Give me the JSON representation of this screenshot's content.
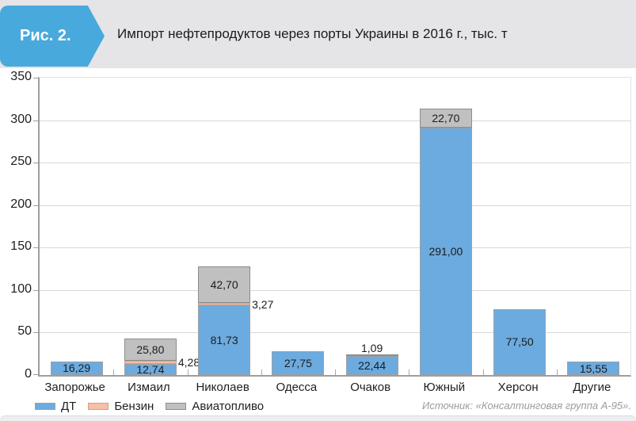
{
  "header": {
    "figure_label": "Рис. 2.",
    "title": "Импорт нефтепродуктов через порты Украины в 2016 г., тыс. т"
  },
  "source": "Источник: «Консалтинговая группа А-95».",
  "colors": {
    "badge_blue": "#48a9dc",
    "header_bg": "#e5e5e7",
    "bar_blue": "#6cabdf",
    "bar_pink": "#f6bfa6",
    "bar_gray": "#c0c0c0",
    "gridline": "#d8d8d8",
    "axis": "#9e9e9e",
    "text": "#1c1c1c",
    "source_text": "#9b9ba2"
  },
  "chart_data": {
    "type": "bar",
    "stacked": true,
    "title": "Импорт нефтепродуктов через порты Украины в 2016 г., тыс. т",
    "ylabel": "тыс. т",
    "xlabel": "",
    "ylim": [
      0,
      350
    ],
    "yticks": [
      0,
      50,
      100,
      150,
      200,
      250,
      300,
      350
    ],
    "grid": true,
    "legend_position": "bottom-left",
    "categories": [
      "Запорожье",
      "Измаил",
      "Николаев",
      "Одесса",
      "Очаков",
      "Южный",
      "Херсон",
      "Другие"
    ],
    "series": [
      {
        "name": "ДТ",
        "color": "#6cabdf",
        "border": "#a0a0a0",
        "values": [
          16.29,
          12.74,
          81.73,
          27.75,
          22.44,
          291.0,
          77.5,
          15.55
        ],
        "labels": [
          "16,29",
          "12,74",
          "81,73",
          "27,75",
          "22,44",
          "291,00",
          "77,50",
          "15,55"
        ],
        "label_placement": [
          "inside",
          "inside",
          "inside",
          "inside",
          "inside",
          "inside",
          "inside",
          "inside"
        ]
      },
      {
        "name": "Бензин",
        "color": "#f6bfa6",
        "border": "#c9a18c",
        "values": [
          null,
          4.28,
          3.27,
          null,
          null,
          null,
          null,
          null
        ],
        "labels": [
          null,
          "4,28",
          "3,27",
          null,
          null,
          null,
          null,
          null
        ],
        "label_placement": [
          null,
          "right",
          "right",
          null,
          null,
          null,
          null,
          null
        ]
      },
      {
        "name": "Авиатопливо",
        "color": "#c0c0c0",
        "border": "#8d8d8d",
        "values": [
          null,
          25.8,
          42.7,
          null,
          1.09,
          22.7,
          null,
          null
        ],
        "labels": [
          null,
          "25,80",
          "42,70",
          null,
          "1,09",
          "22,70",
          null,
          null
        ],
        "label_placement": [
          null,
          "inside",
          "inside",
          null,
          "above",
          "inside",
          null,
          null
        ]
      }
    ]
  }
}
